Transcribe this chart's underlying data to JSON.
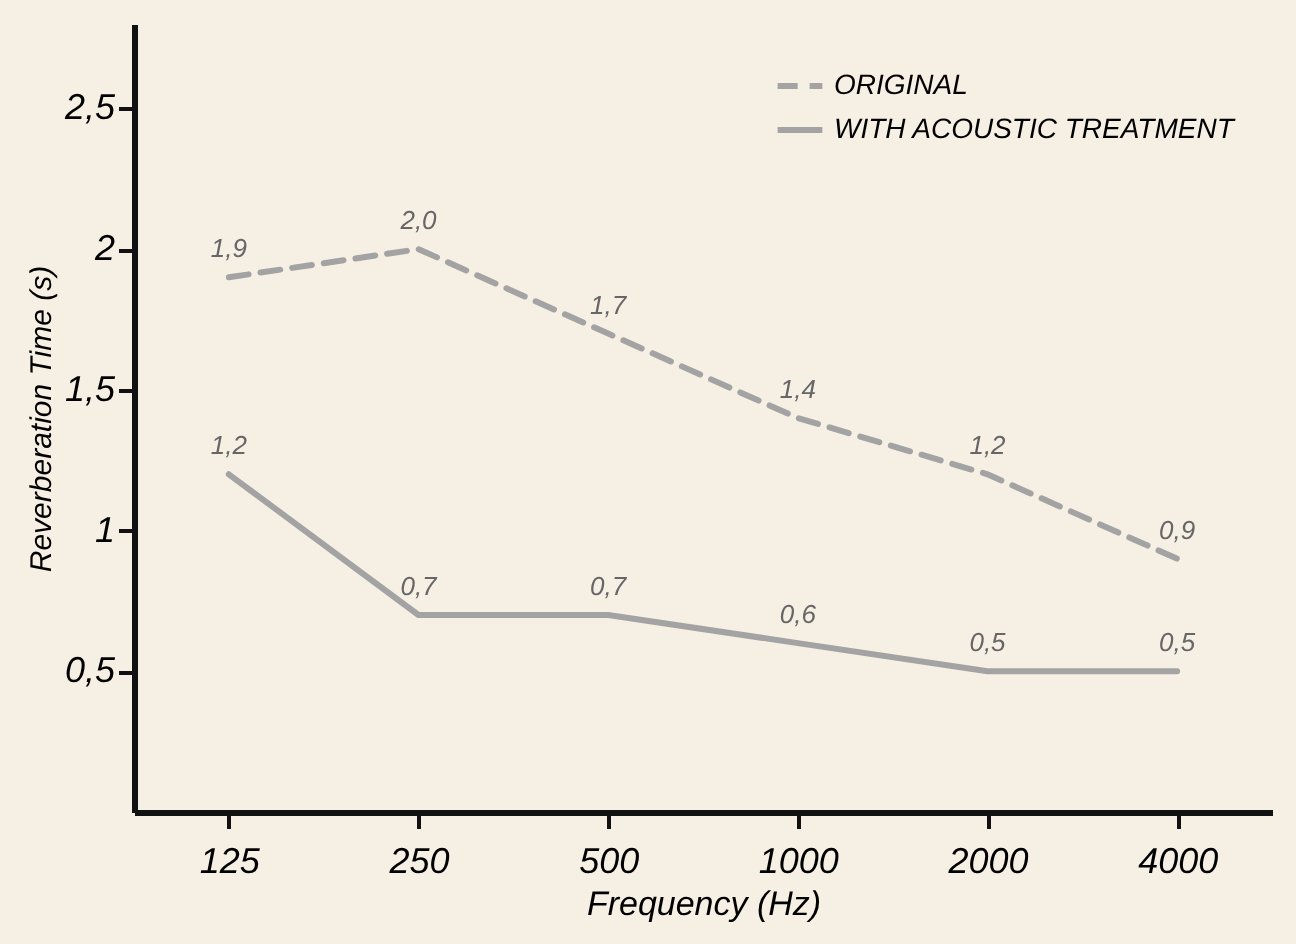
{
  "chart_data": {
    "type": "line",
    "xlabel": "Frequency (Hz)",
    "ylabel": "Reverberation Time (s)",
    "categories": [
      "125",
      "250",
      "500",
      "1000",
      "2000",
      "4000"
    ],
    "ylim": [
      0,
      2.8
    ],
    "yticks": [
      {
        "value": 0.5,
        "label": "0,5"
      },
      {
        "value": 1,
        "label": "1"
      },
      {
        "value": 1.5,
        "label": "1,5"
      },
      {
        "value": 2,
        "label": "2"
      },
      {
        "value": 2.5,
        "label": "2,5"
      }
    ],
    "grid": false,
    "legend": "top right",
    "marker": "none",
    "series": [
      {
        "name": "ORIGINAL",
        "color": "#a3a3a3",
        "line_style": "dashed",
        "values": [
          1.9,
          2.0,
          1.7,
          1.4,
          1.2,
          0.9
        ],
        "value_labels": [
          "1,9",
          "2,0",
          "1,7",
          "1,4",
          "1,2",
          "0,9"
        ]
      },
      {
        "name": "WITH ACOUSTIC TREATMENT",
        "color": "#a3a3a3",
        "line_style": "solid",
        "values": [
          1.2,
          0.7,
          0.7,
          0.6,
          0.5,
          0.5
        ],
        "value_labels": [
          "1,2",
          "0,7",
          "0,7",
          "0,6",
          "0,5",
          "0,5"
        ]
      }
    ]
  }
}
